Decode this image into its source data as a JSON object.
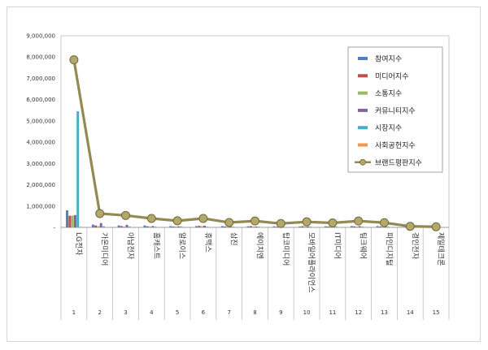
{
  "chart_data": {
    "type": "bar",
    "categories": [
      "LG전자",
      "가온미디어",
      "아남전자",
      "홈캐스트",
      "알로이스",
      "휴맥스",
      "삼진",
      "에이치엔",
      "탑코미디어",
      "모바일어플라이언스",
      "IT미디어",
      "팀크웨어",
      "파인디지털",
      "경인전자",
      "제일테크론"
    ],
    "index_labels": [
      "1",
      "2",
      "3",
      "4",
      "5",
      "6",
      "7",
      "8",
      "9",
      "10",
      "11",
      "12",
      "13",
      "14",
      "15"
    ],
    "ylim": [
      0,
      9000000
    ],
    "yticks": [
      0,
      1000000,
      2000000,
      3000000,
      4000000,
      5000000,
      6000000,
      7000000,
      8000000,
      9000000
    ],
    "ytick_labels": [
      "-",
      "1,000,000",
      "2,000,000",
      "3,000,000",
      "4,000,000",
      "5,000,000",
      "6,000,000",
      "7,000,000",
      "8,000,000",
      "9,000,000"
    ],
    "legend_position": "top-right",
    "series": [
      {
        "name": "참여지수",
        "kind": "bar",
        "color": "#4f81bd",
        "values": [
          800000,
          130000,
          90000,
          90000,
          60000,
          60000,
          60000,
          50000,
          50000,
          40000,
          50000,
          60000,
          60000,
          20000,
          20000
        ]
      },
      {
        "name": "미디어지수",
        "kind": "bar",
        "color": "#c0504d",
        "values": [
          550000,
          90000,
          60000,
          50000,
          40000,
          70000,
          40000,
          60000,
          30000,
          60000,
          40000,
          50000,
          40000,
          20000,
          20000
        ]
      },
      {
        "name": "소통지수",
        "kind": "bar",
        "color": "#9bbb59",
        "values": [
          550000,
          60000,
          40000,
          40000,
          40000,
          60000,
          30000,
          40000,
          30000,
          40000,
          30000,
          40000,
          30000,
          20000,
          10000
        ]
      },
      {
        "name": "커뮤니티지수",
        "kind": "bar",
        "color": "#8064a2",
        "values": [
          580000,
          200000,
          120000,
          60000,
          50000,
          80000,
          50000,
          40000,
          30000,
          40000,
          30000,
          60000,
          40000,
          20000,
          10000
        ]
      },
      {
        "name": "시장지수",
        "kind": "bar",
        "color": "#4bacc6",
        "values": [
          5450000,
          50000,
          40000,
          30000,
          40000,
          30000,
          30000,
          30000,
          20000,
          30000,
          30000,
          30000,
          30000,
          20000,
          20000
        ]
      },
      {
        "name": "사회공헌지수",
        "kind": "bar",
        "color": "#f79646",
        "values": [
          30000,
          10000,
          10000,
          10000,
          10000,
          10000,
          10000,
          10000,
          10000,
          10000,
          10000,
          10000,
          10000,
          10000,
          10000
        ]
      },
      {
        "name": "브랜드평판지수",
        "kind": "line",
        "color": "#938953",
        "marker_color": "#b3a86a",
        "values": [
          7870000,
          650000,
          560000,
          420000,
          310000,
          420000,
          230000,
          300000,
          180000,
          260000,
          210000,
          300000,
          220000,
          50000,
          30000
        ]
      }
    ]
  }
}
